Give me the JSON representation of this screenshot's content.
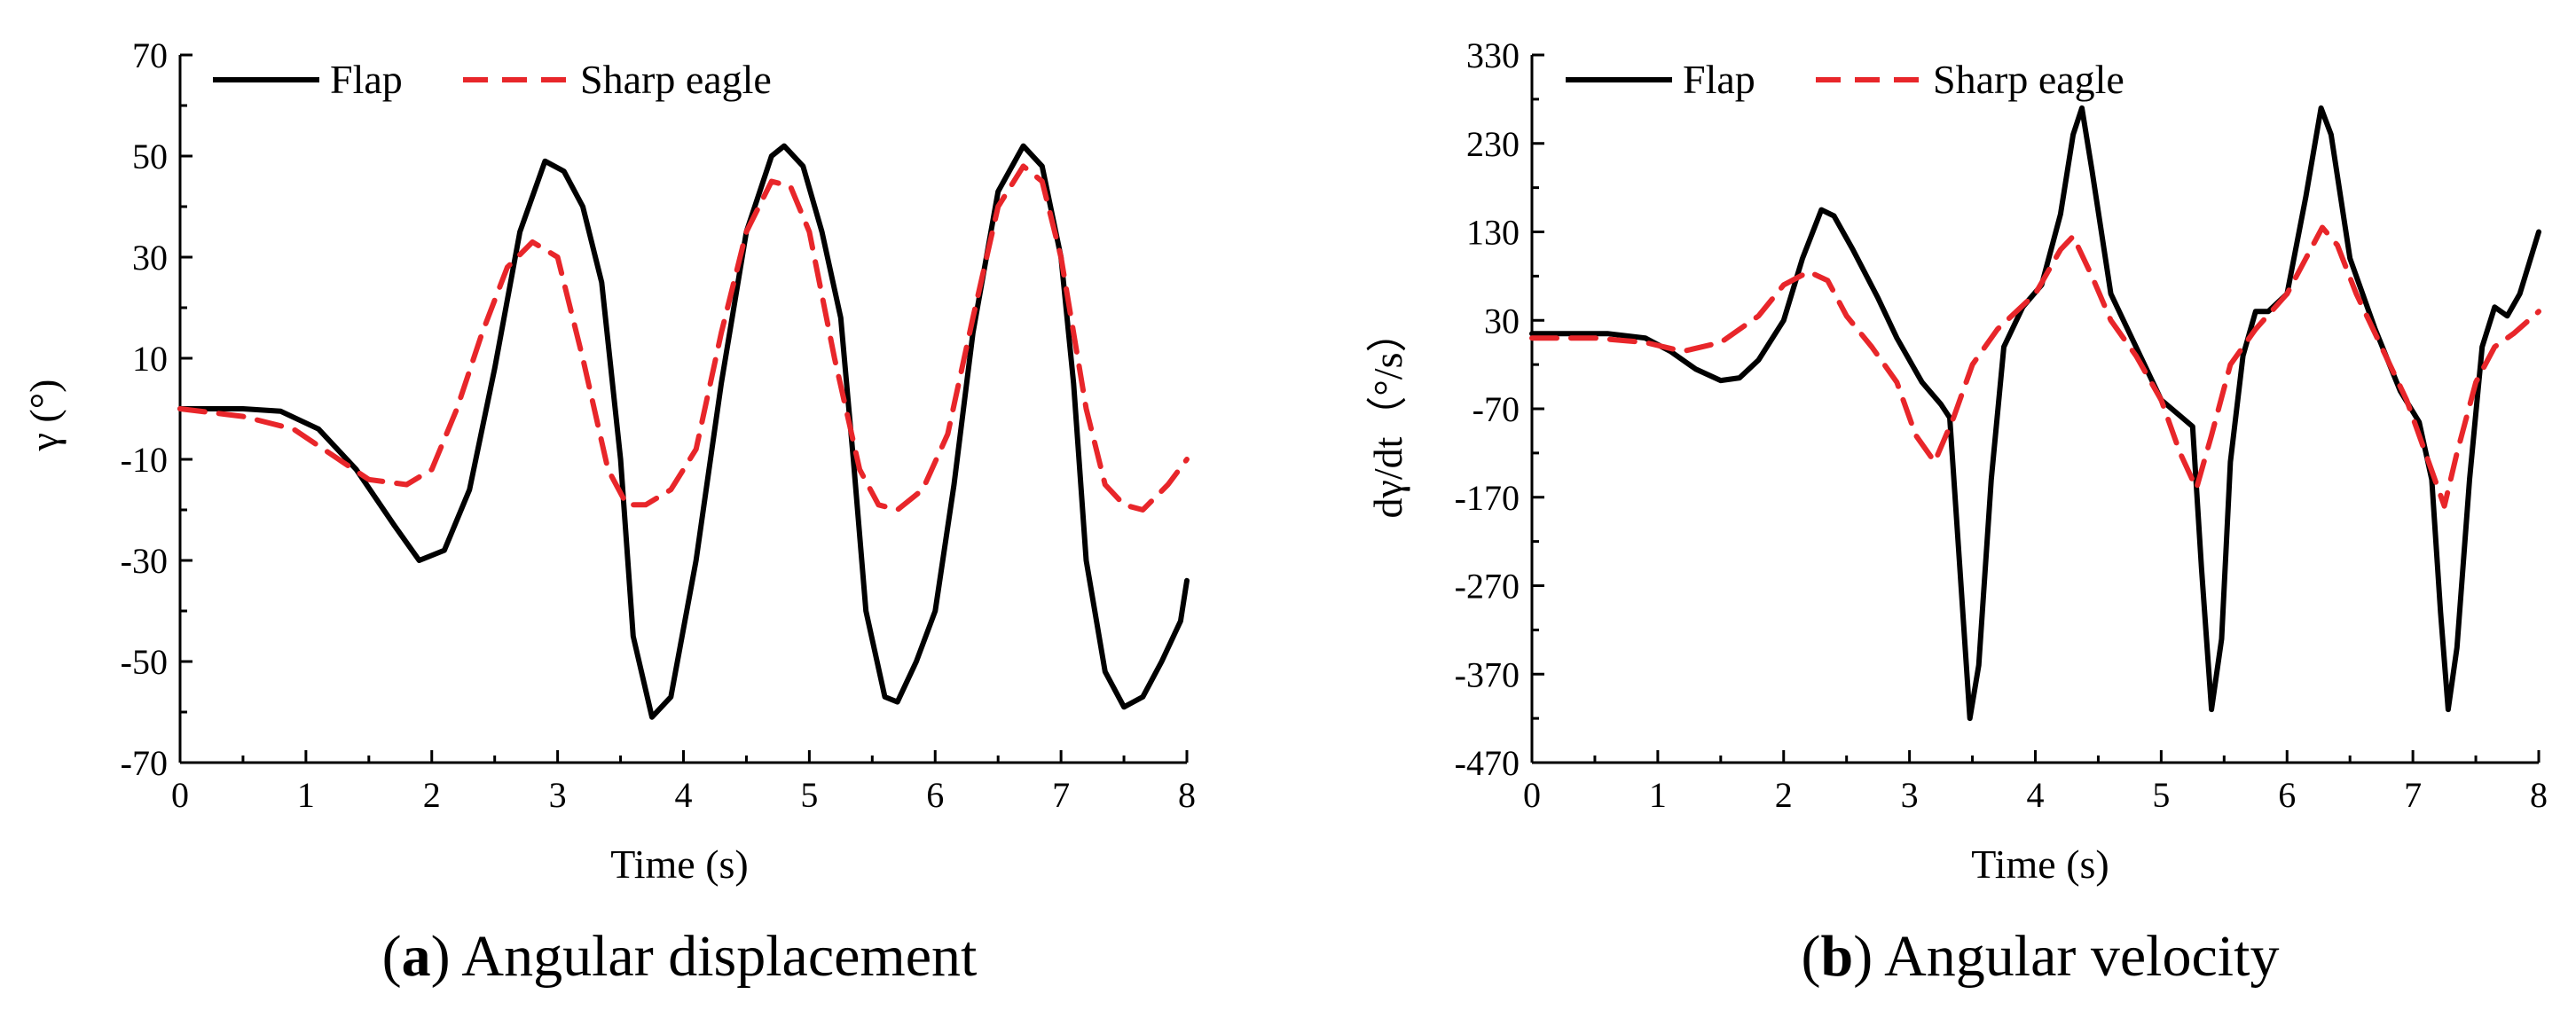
{
  "chart_data": [
    {
      "type": "line",
      "title": "",
      "caption_letter": "a",
      "caption_text": ") Angular displacement",
      "caption_open": "(",
      "xlabel": "Time (s)",
      "ylabel": "γ (°)",
      "xlim": [
        0,
        8
      ],
      "ylim": [
        -70,
        70
      ],
      "xticks": [
        0,
        1,
        2,
        3,
        4,
        5,
        6,
        7,
        8
      ],
      "yticks": [
        -70,
        -50,
        -30,
        -10,
        10,
        30,
        50,
        70
      ],
      "xtick_labels": [
        "0",
        "1",
        "2",
        "3",
        "4",
        "5",
        "6",
        "7",
        "8"
      ],
      "ytick_labels": [
        "-70",
        "-50",
        "-30",
        "-10",
        "10",
        "30",
        "50",
        "70"
      ],
      "legend_position": "top-left",
      "series": [
        {
          "name": "Flap",
          "color": "#000000",
          "style": "solid",
          "points": [
            [
              0,
              0
            ],
            [
              0.5,
              0
            ],
            [
              0.8,
              -0.5
            ],
            [
              1.1,
              -4
            ],
            [
              1.4,
              -12
            ],
            [
              1.7,
              -23
            ],
            [
              1.9,
              -30
            ],
            [
              2.1,
              -28
            ],
            [
              2.3,
              -16
            ],
            [
              2.5,
              8
            ],
            [
              2.7,
              35
            ],
            [
              2.9,
              49
            ],
            [
              3.05,
              47
            ],
            [
              3.2,
              40
            ],
            [
              3.35,
              25
            ],
            [
              3.5,
              -10
            ],
            [
              3.6,
              -45
            ],
            [
              3.75,
              -61
            ],
            [
              3.9,
              -57
            ],
            [
              4.1,
              -30
            ],
            [
              4.3,
              5
            ],
            [
              4.5,
              35
            ],
            [
              4.7,
              50
            ],
            [
              4.8,
              52
            ],
            [
              4.95,
              48
            ],
            [
              5.1,
              35
            ],
            [
              5.25,
              18
            ],
            [
              5.35,
              -10
            ],
            [
              5.45,
              -40
            ],
            [
              5.6,
              -57
            ],
            [
              5.7,
              -58
            ],
            [
              5.85,
              -50
            ],
            [
              6.0,
              -40
            ],
            [
              6.15,
              -15
            ],
            [
              6.3,
              15
            ],
            [
              6.5,
              43
            ],
            [
              6.7,
              52
            ],
            [
              6.85,
              48
            ],
            [
              7.0,
              30
            ],
            [
              7.1,
              5
            ],
            [
              7.2,
              -30
            ],
            [
              7.35,
              -52
            ],
            [
              7.5,
              -59
            ],
            [
              7.65,
              -57
            ],
            [
              7.8,
              -50
            ],
            [
              7.95,
              -42
            ],
            [
              8.0,
              -34
            ]
          ]
        },
        {
          "name": "Sharp eagle",
          "color": "#e8262a",
          "style": "dashed",
          "points": [
            [
              0,
              0
            ],
            [
              0.5,
              -1.5
            ],
            [
              0.9,
              -4
            ],
            [
              1.2,
              -9
            ],
            [
              1.5,
              -14
            ],
            [
              1.8,
              -15
            ],
            [
              2.0,
              -12
            ],
            [
              2.2,
              0
            ],
            [
              2.4,
              15
            ],
            [
              2.6,
              28
            ],
            [
              2.8,
              33
            ],
            [
              3.0,
              30
            ],
            [
              3.2,
              10
            ],
            [
              3.4,
              -12
            ],
            [
              3.55,
              -19
            ],
            [
              3.7,
              -19
            ],
            [
              3.9,
              -16
            ],
            [
              4.1,
              -8
            ],
            [
              4.3,
              15
            ],
            [
              4.5,
              35
            ],
            [
              4.7,
              45
            ],
            [
              4.85,
              44
            ],
            [
              5.0,
              35
            ],
            [
              5.2,
              10
            ],
            [
              5.4,
              -12
            ],
            [
              5.55,
              -19
            ],
            [
              5.7,
              -20
            ],
            [
              5.9,
              -16
            ],
            [
              6.1,
              -5
            ],
            [
              6.3,
              18
            ],
            [
              6.5,
              40
            ],
            [
              6.7,
              48
            ],
            [
              6.85,
              45
            ],
            [
              7.0,
              30
            ],
            [
              7.2,
              0
            ],
            [
              7.35,
              -15
            ],
            [
              7.5,
              -19
            ],
            [
              7.65,
              -20
            ],
            [
              7.85,
              -15
            ],
            [
              8.0,
              -10
            ]
          ]
        }
      ]
    },
    {
      "type": "line",
      "title": "",
      "caption_letter": "b",
      "caption_text": ") Angular velocity",
      "caption_open": "(",
      "xlabel": "Time (s)",
      "ylabel": "dγ/dt（°/s）",
      "xlim": [
        0,
        8
      ],
      "ylim": [
        -470,
        330
      ],
      "xticks": [
        0,
        1,
        2,
        3,
        4,
        5,
        6,
        7,
        8
      ],
      "yticks": [
        -470,
        -370,
        -270,
        -170,
        -70,
        30,
        130,
        230,
        330
      ],
      "xtick_labels": [
        "0",
        "1",
        "2",
        "3",
        "4",
        "5",
        "6",
        "7",
        "8"
      ],
      "ytick_labels": [
        "-470",
        "-370",
        "-270",
        "-170",
        "-70",
        "30",
        "130",
        "230",
        "330"
      ],
      "legend_position": "top-left",
      "series": [
        {
          "name": "Flap",
          "color": "#000000",
          "style": "solid",
          "points": [
            [
              0,
              15
            ],
            [
              0.6,
              15
            ],
            [
              0.9,
              10
            ],
            [
              1.1,
              -5
            ],
            [
              1.3,
              -25
            ],
            [
              1.5,
              -38
            ],
            [
              1.65,
              -35
            ],
            [
              1.8,
              -15
            ],
            [
              2.0,
              30
            ],
            [
              2.15,
              100
            ],
            [
              2.3,
              155
            ],
            [
              2.4,
              148
            ],
            [
              2.55,
              110
            ],
            [
              2.75,
              55
            ],
            [
              2.9,
              10
            ],
            [
              3.1,
              -40
            ],
            [
              3.25,
              -65
            ],
            [
              3.32,
              -80
            ],
            [
              3.4,
              -250
            ],
            [
              3.48,
              -420
            ],
            [
              3.55,
              -360
            ],
            [
              3.65,
              -150
            ],
            [
              3.75,
              0
            ],
            [
              3.9,
              45
            ],
            [
              4.05,
              70
            ],
            [
              4.2,
              150
            ],
            [
              4.3,
              240
            ],
            [
              4.37,
              270
            ],
            [
              4.45,
              200
            ],
            [
              4.6,
              60
            ],
            [
              4.8,
              0
            ],
            [
              5.0,
              -60
            ],
            [
              5.15,
              -78
            ],
            [
              5.25,
              -90
            ],
            [
              5.32,
              -250
            ],
            [
              5.4,
              -410
            ],
            [
              5.48,
              -330
            ],
            [
              5.55,
              -130
            ],
            [
              5.65,
              -10
            ],
            [
              5.75,
              40
            ],
            [
              5.85,
              40
            ],
            [
              6.0,
              60
            ],
            [
              6.15,
              170
            ],
            [
              6.27,
              270
            ],
            [
              6.35,
              240
            ],
            [
              6.5,
              100
            ],
            [
              6.7,
              20
            ],
            [
              6.9,
              -50
            ],
            [
              7.05,
              -85
            ],
            [
              7.15,
              -150
            ],
            [
              7.22,
              -300
            ],
            [
              7.28,
              -410
            ],
            [
              7.35,
              -340
            ],
            [
              7.45,
              -150
            ],
            [
              7.55,
              0
            ],
            [
              7.65,
              45
            ],
            [
              7.75,
              35
            ],
            [
              7.85,
              60
            ],
            [
              8.0,
              130
            ]
          ]
        },
        {
          "name": "Sharp eagle",
          "color": "#e8262a",
          "style": "dashed",
          "points": [
            [
              0,
              10
            ],
            [
              0.5,
              10
            ],
            [
              0.9,
              5
            ],
            [
              1.2,
              -5
            ],
            [
              1.5,
              5
            ],
            [
              1.8,
              35
            ],
            [
              2.0,
              70
            ],
            [
              2.2,
              85
            ],
            [
              2.35,
              75
            ],
            [
              2.5,
              35
            ],
            [
              2.7,
              0
            ],
            [
              2.9,
              -40
            ],
            [
              3.05,
              -100
            ],
            [
              3.2,
              -130
            ],
            [
              3.35,
              -80
            ],
            [
              3.5,
              -20
            ],
            [
              3.7,
              20
            ],
            [
              4.0,
              60
            ],
            [
              4.2,
              110
            ],
            [
              4.3,
              125
            ],
            [
              4.45,
              80
            ],
            [
              4.6,
              30
            ],
            [
              4.8,
              -10
            ],
            [
              5.0,
              -60
            ],
            [
              5.15,
              -120
            ],
            [
              5.28,
              -160
            ],
            [
              5.4,
              -100
            ],
            [
              5.55,
              -20
            ],
            [
              5.75,
              20
            ],
            [
              6.0,
              60
            ],
            [
              6.15,
              100
            ],
            [
              6.28,
              135
            ],
            [
              6.4,
              115
            ],
            [
              6.55,
              60
            ],
            [
              6.75,
              0
            ],
            [
              6.95,
              -60
            ],
            [
              7.1,
              -120
            ],
            [
              7.25,
              -180
            ],
            [
              7.35,
              -120
            ],
            [
              7.5,
              -40
            ],
            [
              7.65,
              0
            ],
            [
              7.8,
              15
            ],
            [
              8.0,
              40
            ]
          ]
        }
      ]
    }
  ]
}
